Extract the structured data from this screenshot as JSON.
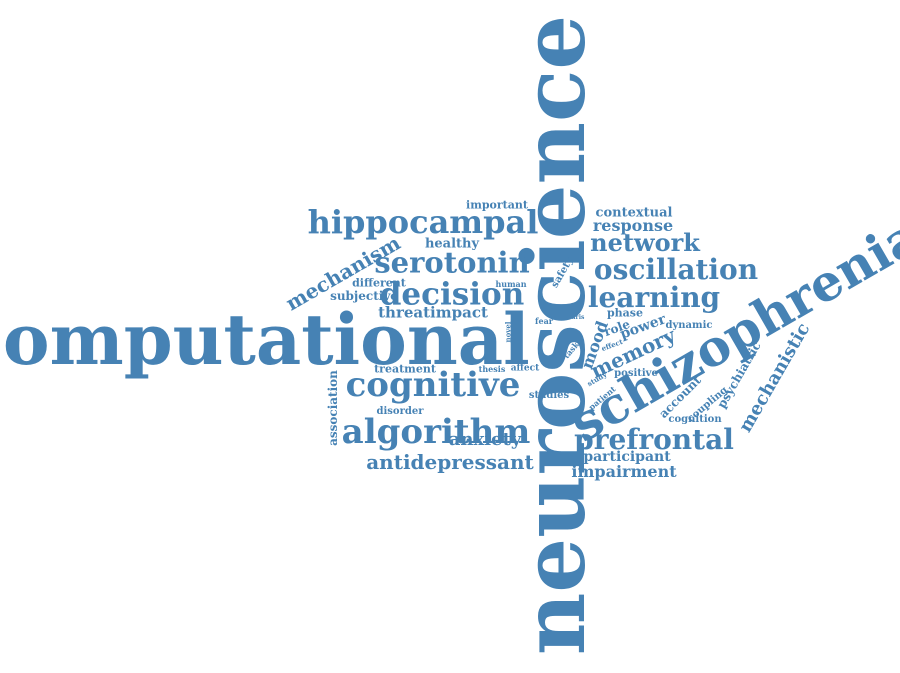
{
  "color": "#4682b4",
  "words": [
    "neuroscience",
    "computational",
    "schizophrenia",
    "hippocampal",
    "cognitive",
    "algorithm",
    "decision",
    "serotonin",
    "oscillation",
    "learning",
    "network",
    "prefrontal",
    "mechanism",
    "antidepressant",
    "memory",
    "mechanistic",
    "anxiety",
    "mood",
    "response",
    "contextual",
    "impairment",
    "participant",
    "threatimpact",
    "healthy",
    "important",
    "power",
    "account",
    "psychiatric",
    "association",
    "subjective",
    "different",
    "treatment",
    "disorder",
    "dynamic",
    "coupling",
    "cognition",
    "positive",
    "phase",
    "studies",
    "safety",
    "role",
    "human",
    "affect",
    "thesis",
    "fear",
    "novel",
    "patient",
    "task",
    "effect",
    "study",
    "aris"
  ]
}
